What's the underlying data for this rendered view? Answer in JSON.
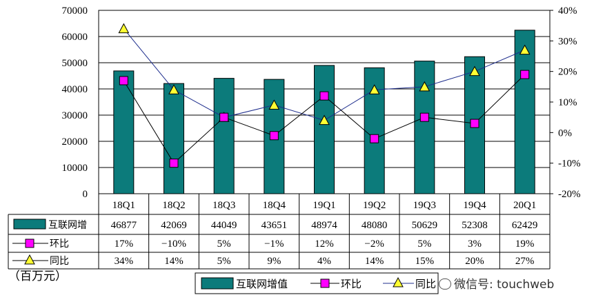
{
  "chart_data": {
    "type": "bar",
    "categories": [
      "18Q1",
      "18Q2",
      "18Q3",
      "18Q4",
      "19Q1",
      "19Q2",
      "19Q3",
      "19Q4",
      "20Q1"
    ],
    "series": [
      {
        "name": "互联网增值",
        "type": "bar",
        "axis": "left",
        "color": "#0c7b7b",
        "values": [
          46877,
          42069,
          44049,
          43651,
          48974,
          48080,
          50629,
          52308,
          62429
        ],
        "table_label": "互联网增"
      },
      {
        "name": "环比",
        "type": "line",
        "axis": "right",
        "color": "#000000",
        "marker_color": "#ff00ff",
        "values": [
          17,
          -10,
          5,
          -1,
          12,
          -2,
          5,
          3,
          19
        ],
        "display": [
          "17%",
          "-10%",
          "5%",
          "-1%",
          "12%",
          "-2%",
          "5%",
          "3%",
          "19%"
        ]
      },
      {
        "name": "同比",
        "type": "line",
        "axis": "right",
        "color": "#1c2c8c",
        "marker_color": "#ffff33",
        "values": [
          34,
          14,
          5,
          9,
          4,
          14,
          15,
          20,
          27
        ],
        "display": [
          "34%",
          "14%",
          "5%",
          "9%",
          "4%",
          "14%",
          "15%",
          "20%",
          "27%"
        ]
      }
    ],
    "y_left": {
      "ticks": [
        "0",
        "10000",
        "20000",
        "30000",
        "40000",
        "50000",
        "60000",
        "70000"
      ],
      "lim": [
        0,
        70000
      ]
    },
    "y_right": {
      "ticks": [
        "-20%",
        "-10%",
        "0%",
        "10%",
        "20%",
        "30%",
        "40%"
      ],
      "lim": [
        -20,
        40
      ]
    },
    "legend": {
      "placement": "bottom",
      "items": [
        "互联网增值",
        "环比",
        "同比"
      ]
    }
  },
  "unit_label": "（百万元）",
  "watermark": "微信号: touchweb"
}
